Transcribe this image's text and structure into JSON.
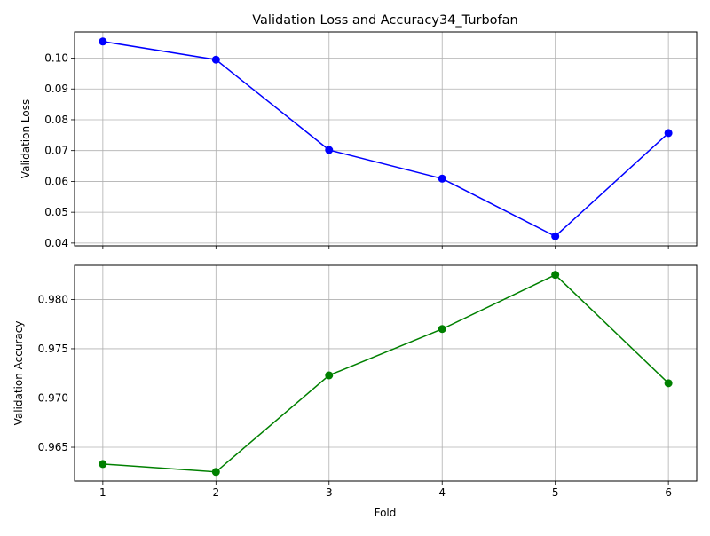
{
  "chart_data": [
    {
      "type": "line",
      "title": "Validation Loss and Accuracy34_Turbofan",
      "xlabel": "",
      "ylabel": "Validation Loss",
      "x": [
        1,
        2,
        3,
        4,
        5,
        6
      ],
      "series": [
        {
          "values": [
            0.1054,
            0.0995,
            0.0702,
            0.0609,
            0.0422,
            0.0757
          ],
          "color": "#0000ff",
          "marker": "circle"
        }
      ],
      "xlim": [
        0.75,
        6.25
      ],
      "ylim": [
        0.0391,
        0.1085
      ],
      "yticks": [
        "0.04",
        "0.05",
        "0.06",
        "0.07",
        "0.08",
        "0.09",
        "0.10"
      ],
      "xtick_labels_shown": false,
      "grid": true
    },
    {
      "type": "line",
      "title": "",
      "xlabel": "Fold",
      "ylabel": "Validation Accuracy",
      "x": [
        1,
        2,
        3,
        4,
        5,
        6
      ],
      "series": [
        {
          "values": [
            0.9633,
            0.9625,
            0.9723,
            0.977,
            0.9825,
            0.9715
          ],
          "color": "#008000",
          "marker": "circle"
        }
      ],
      "xlim": [
        0.75,
        6.25
      ],
      "ylim": [
        0.96158,
        0.98346
      ],
      "xticks": [
        "1",
        "2",
        "3",
        "4",
        "5",
        "6"
      ],
      "yticks": [
        "0.965",
        "0.970",
        "0.975",
        "0.980"
      ],
      "grid": true
    }
  ]
}
